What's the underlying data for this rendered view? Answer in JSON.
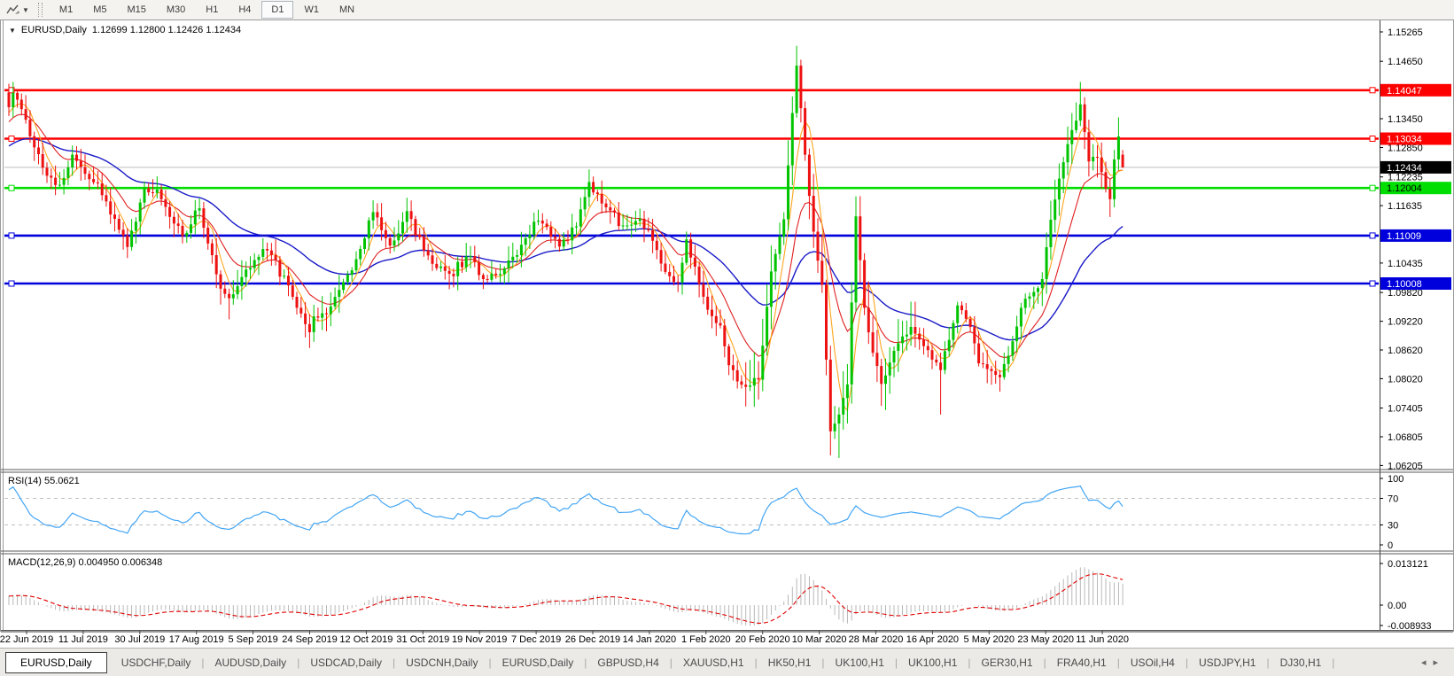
{
  "toolbar": {
    "indicator_icon": "draw-indicator-icon",
    "timeframes": [
      {
        "label": "M1",
        "active": false
      },
      {
        "label": "M5",
        "active": false
      },
      {
        "label": "M15",
        "active": false
      },
      {
        "label": "M30",
        "active": false
      },
      {
        "label": "H1",
        "active": false
      },
      {
        "label": "H4",
        "active": false
      },
      {
        "label": "D1",
        "active": true
      },
      {
        "label": "W1",
        "active": false
      },
      {
        "label": "MN",
        "active": false
      }
    ]
  },
  "chart": {
    "title_symbol": "EURUSD,Daily",
    "title_values": "1.12699 1.12800 1.12426 1.12434"
  },
  "chart_data": {
    "type": "candlestick",
    "symbol": "EURUSD",
    "timeframe": "Daily",
    "n_candles": 264,
    "current_ohlc": {
      "o": 1.12699,
      "h": 1.128,
      "l": 1.12426,
      "c": 1.12434
    },
    "price_axis_ticks": [
      "1.15265",
      "1.14650",
      "1.13450",
      "1.12850",
      "1.12235",
      "1.11635",
      "1.10435",
      "1.09820",
      "1.09220",
      "1.08620",
      "1.08020",
      "1.07405",
      "1.06805",
      "1.06205"
    ],
    "horizontal_lines": [
      {
        "price": 1.14047,
        "label": "1.14047",
        "color": "#ff0000",
        "text": "#ffffff"
      },
      {
        "price": 1.13034,
        "label": "1.13034",
        "color": "#ff0000",
        "text": "#ffffff"
      },
      {
        "price": 1.12004,
        "label": "1.12004",
        "color": "#00dd00",
        "text": "#000000"
      },
      {
        "price": 1.11009,
        "label": "1.11009",
        "color": "#0000dd",
        "text": "#ffffff"
      },
      {
        "price": 1.10008,
        "label": "1.10008",
        "color": "#0000dd",
        "text": "#ffffff"
      }
    ],
    "current_price_line": {
      "price": 1.12434,
      "label": "1.12434",
      "line_color": "#bdbdbd",
      "badge_bg": "#000000",
      "badge_text": "#ffffff"
    },
    "date_labels": [
      "22 Jun 2019",
      "11 Jul 2019",
      "30 Jul 2019",
      "17 Aug 2019",
      "5 Sep 2019",
      "24 Sep 2019",
      "12 Oct 2019",
      "31 Oct 2019",
      "19 Nov 2019",
      "7 Dec 2019",
      "26 Dec 2019",
      "14 Jan 2020",
      "1 Feb 2020",
      "20 Feb 2020",
      "10 Mar 2020",
      "28 Mar 2020",
      "16 Apr 2020",
      "5 May 2020",
      "23 May 2020",
      "11 Jun 2020"
    ],
    "colors": {
      "candle_up": "#00c400",
      "candle_down": "#ee1111",
      "wick_up": "#00a800",
      "wick_down": "#cc0000",
      "ma_fast": "#ffa51e",
      "ma_mid": "#e02020",
      "ma_slow": "#1a1ac8",
      "rsi_line": "#42a5f5",
      "rsi_levels": "#c0c0c0",
      "macd_hist": "#b0b0b0",
      "macd_signal": "#e00000"
    },
    "moving_averages": [
      {
        "name": "MA fast",
        "method": "sma",
        "period": 5
      },
      {
        "name": "MA mid",
        "method": "ema",
        "period": 13
      },
      {
        "name": "MA slow",
        "method": "ema",
        "period": 40
      }
    ],
    "close_waypoints": [
      [
        0,
        1.1369,
        null,
        null
      ],
      [
        1,
        1.1399,
        1.1412,
        null
      ],
      [
        3,
        1.1365,
        null,
        null
      ],
      [
        6,
        1.1285,
        null,
        null
      ],
      [
        9,
        1.1226,
        null,
        null
      ],
      [
        12,
        1.1207,
        null,
        null
      ],
      [
        15,
        1.127,
        null,
        null
      ],
      [
        18,
        1.123,
        null,
        null
      ],
      [
        21,
        1.121,
        null,
        null
      ],
      [
        24,
        1.1145,
        null,
        null
      ],
      [
        28,
        1.1077,
        null,
        1.1059
      ],
      [
        32,
        1.12,
        null,
        null
      ],
      [
        35,
        1.1197,
        null,
        null
      ],
      [
        38,
        1.114,
        null,
        null
      ],
      [
        41,
        1.11,
        null,
        null
      ],
      [
        45,
        1.1158,
        null,
        null
      ],
      [
        48,
        1.106,
        null,
        null
      ],
      [
        50,
        1.099,
        null,
        null
      ],
      [
        52,
        1.097,
        null,
        1.0926
      ],
      [
        56,
        1.103,
        null,
        null
      ],
      [
        60,
        1.1073,
        null,
        null
      ],
      [
        65,
        1.1017,
        null,
        null
      ],
      [
        68,
        1.095,
        null,
        null
      ],
      [
        71,
        1.0899,
        null,
        null
      ],
      [
        72,
        1.0932,
        null,
        1.0879
      ],
      [
        76,
        1.0953,
        null,
        null
      ],
      [
        79,
        1.1004,
        null,
        null
      ],
      [
        83,
        1.1073,
        null,
        null
      ],
      [
        86,
        1.115,
        null,
        null
      ],
      [
        90,
        1.108,
        null,
        null
      ],
      [
        94,
        1.1152,
        1.118,
        null
      ],
      [
        98,
        1.107,
        null,
        null
      ],
      [
        101,
        1.1033,
        null,
        null
      ],
      [
        104,
        1.1021,
        null,
        1.0989
      ],
      [
        109,
        1.1058,
        null,
        null
      ],
      [
        112,
        1.101,
        null,
        null
      ],
      [
        115,
        1.1018,
        null,
        null
      ],
      [
        120,
        1.106,
        null,
        null
      ],
      [
        124,
        1.113,
        null,
        null
      ],
      [
        127,
        1.1119,
        null,
        null
      ],
      [
        130,
        1.1078,
        null,
        null
      ],
      [
        134,
        1.112,
        null,
        null
      ],
      [
        137,
        1.1213,
        1.1239,
        null
      ],
      [
        141,
        1.116,
        null,
        null
      ],
      [
        145,
        1.1122,
        null,
        null
      ],
      [
        149,
        1.1136,
        null,
        null
      ],
      [
        152,
        1.109,
        null,
        null
      ],
      [
        155,
        1.1025,
        null,
        null
      ],
      [
        158,
        1.1003,
        null,
        null
      ],
      [
        160,
        1.1093,
        null,
        null
      ],
      [
        163,
        1.1,
        null,
        null
      ],
      [
        165,
        1.0946,
        null,
        null
      ],
      [
        168,
        1.0913,
        null,
        null
      ],
      [
        170,
        1.083,
        null,
        null
      ],
      [
        174,
        1.0785,
        null,
        1.0778
      ],
      [
        177,
        1.08,
        null,
        null
      ],
      [
        180,
        1.1026,
        null,
        null
      ],
      [
        183,
        1.1135,
        null,
        null
      ],
      [
        186,
        1.1456,
        1.1495,
        null
      ],
      [
        188,
        1.127,
        null,
        null
      ],
      [
        189,
        1.1184,
        null,
        null
      ],
      [
        190,
        1.1109,
        null,
        null
      ],
      [
        192,
        1.0998,
        null,
        null
      ],
      [
        194,
        1.0692,
        null,
        1.0656
      ],
      [
        196,
        1.0727,
        null,
        1.0636
      ],
      [
        198,
        1.079,
        null,
        null
      ],
      [
        200,
        1.1141,
        1.1147,
        null
      ],
      [
        202,
        1.095,
        null,
        null
      ],
      [
        204,
        1.0856,
        null,
        null
      ],
      [
        206,
        1.0791,
        null,
        1.0768
      ],
      [
        209,
        1.086,
        null,
        null
      ],
      [
        213,
        1.091,
        null,
        null
      ],
      [
        216,
        1.087,
        null,
        null
      ],
      [
        220,
        1.082,
        null,
        1.0727
      ],
      [
        224,
        1.0955,
        null,
        null
      ],
      [
        227,
        1.091,
        null,
        null
      ],
      [
        229,
        1.0834,
        null,
        null
      ],
      [
        232,
        1.0818,
        null,
        null
      ],
      [
        234,
        1.0805,
        null,
        1.0775
      ],
      [
        237,
        1.088,
        null,
        null
      ],
      [
        239,
        1.095,
        null,
        null
      ],
      [
        242,
        1.0983,
        null,
        null
      ],
      [
        244,
        1.101,
        null,
        null
      ],
      [
        246,
        1.1134,
        null,
        null
      ],
      [
        248,
        1.122,
        null,
        null
      ],
      [
        250,
        1.1292,
        null,
        null
      ],
      [
        253,
        1.1375,
        1.1422,
        null
      ],
      [
        255,
        1.1256,
        null,
        null
      ],
      [
        257,
        1.1264,
        null,
        null
      ],
      [
        260,
        1.1177,
        null,
        1.1168
      ],
      [
        261,
        1.126,
        null,
        null
      ],
      [
        262,
        1.1308,
        1.1348,
        null
      ],
      [
        263,
        1.12434,
        1.128,
        1.12426
      ]
    ],
    "rsi": {
      "label": "RSI(14) 55.0621",
      "period": 14,
      "levels": [
        70,
        30
      ],
      "axis_ticks": [
        "100",
        "70",
        "30",
        "0"
      ],
      "current": 55.0621
    },
    "macd": {
      "label": "MACD(12,26,9) 0.004950 0.006348",
      "fast": 12,
      "slow": 26,
      "signal": 9,
      "axis_ticks": [
        "0.013121",
        "0.00",
        "-0.008933"
      ],
      "current_macd": 0.00495,
      "current_signal": 0.006348
    }
  },
  "tabs": {
    "items": [
      {
        "label": "EURUSD,Daily",
        "active": true
      },
      {
        "label": "USDCHF,Daily",
        "active": false
      },
      {
        "label": "AUDUSD,Daily",
        "active": false
      },
      {
        "label": "USDCAD,Daily",
        "active": false
      },
      {
        "label": "USDCNH,Daily",
        "active": false
      },
      {
        "label": "EURUSD,Daily",
        "active": false
      },
      {
        "label": "GBPUSD,H4",
        "active": false
      },
      {
        "label": "XAUUSD,H1",
        "active": false
      },
      {
        "label": "HK50,H1",
        "active": false
      },
      {
        "label": "UK100,H1",
        "active": false
      },
      {
        "label": "UK100,H1",
        "active": false
      },
      {
        "label": "GER30,H1",
        "active": false
      },
      {
        "label": "FRA40,H1",
        "active": false
      },
      {
        "label": "USOil,H4",
        "active": false
      },
      {
        "label": "USDJPY,H1",
        "active": false
      },
      {
        "label": "DJ30,H1",
        "active": false
      }
    ],
    "nav_left": "◂",
    "nav_right": "▸"
  }
}
